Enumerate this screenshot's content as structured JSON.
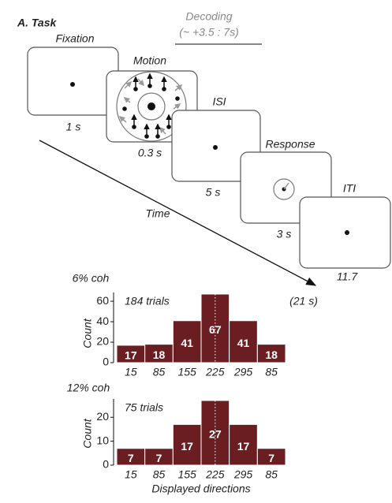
{
  "task": {
    "panel_label": "A. Task",
    "decoding": "Decoding",
    "decoding_window": "(~ +3.5 : 7s)",
    "screens": [
      {
        "label": "Fixation",
        "duration": "1 s"
      },
      {
        "label": "Motion",
        "duration": "0.3 s"
      },
      {
        "label": "ISI",
        "duration": "5 s"
      },
      {
        "label": "Response",
        "duration": "3 s"
      },
      {
        "label": "ITI",
        "duration": "11.7"
      }
    ],
    "time_label": "Time",
    "total": "(21 s)"
  },
  "chart_data": [
    {
      "type": "bar",
      "title": "6% coh",
      "annotation": "184 trials",
      "ylabel": "Count",
      "categories": [
        "15",
        "85",
        "155",
        "225",
        "295",
        "85"
      ],
      "values": [
        17,
        18,
        41,
        67,
        41,
        18
      ],
      "color": "#6b1e22",
      "ylim": [
        0,
        67
      ],
      "yticks": [
        0,
        20,
        40,
        60
      ]
    },
    {
      "type": "bar",
      "title": "12% coh",
      "annotation": "75 trials",
      "ylabel": "Count",
      "xlabel": "Displayed directions",
      "categories": [
        "15",
        "85",
        "155",
        "225",
        "295",
        "85"
      ],
      "values": [
        7,
        7,
        17,
        27,
        17,
        7
      ],
      "color": "#6b1e22",
      "ylim": [
        0,
        27
      ],
      "yticks": [
        0,
        10,
        20
      ]
    }
  ]
}
